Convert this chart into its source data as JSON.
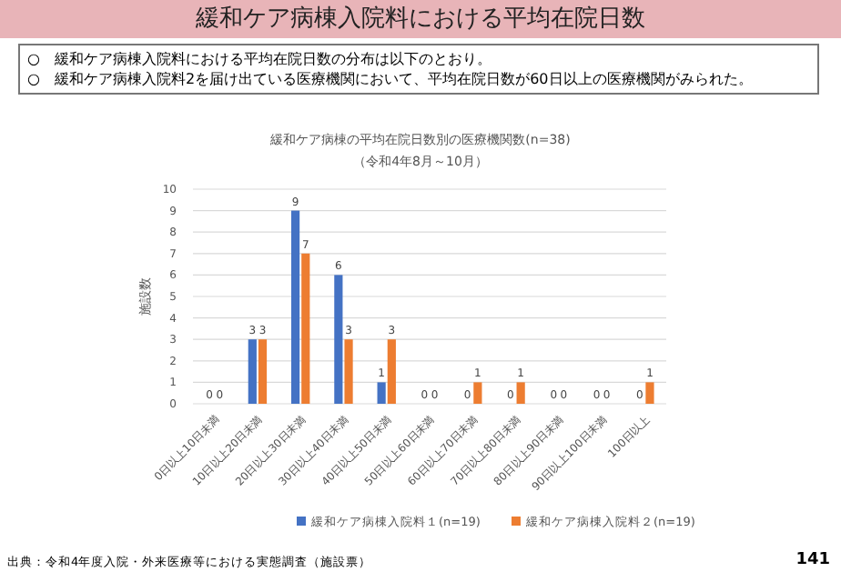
{
  "chart_data": {
    "type": "bar",
    "title": "緩和ケア病棟入院料における平均在院日数",
    "subtitle": "緩和ケア病棟の平均在院日数別の医療機関数(n=38)",
    "annotations": [
      "（令和4年8月～10月）",
      "○　緩和ケア病棟入院料における平均在院日数の分布は以下のとおり。",
      "○　緩和ケア病棟入院料2を届け出ている医療機関において、平均在院日数が60日以上の医療機関がみられた。",
      "出典：令和4年度入院・外来医療等における実態調査（施設票）",
      "141"
    ],
    "ylabel": "施設数",
    "categories": [
      "0日以上10日未満",
      "10日以上20日未満",
      "20日以上30日未満",
      "30日以上40日未満",
      "40日以上50日未満",
      "50日以上60日未満",
      "60日以上70日未満",
      "70日以上80日未満",
      "80日以上90日未満",
      "90日以上100日未満",
      "100日以上"
    ],
    "series": [
      {
        "name": "緩和ケア病棟入院料１(n=19)",
        "color": "#4472c4",
        "values": [
          0,
          3,
          9,
          6,
          1,
          0,
          0,
          0,
          0,
          0,
          0
        ]
      },
      {
        "name": "緩和ケア病棟入院料２(n=19)",
        "color": "#ed7d31",
        "values": [
          0,
          3,
          7,
          3,
          3,
          0,
          1,
          1,
          0,
          0,
          1
        ]
      }
    ],
    "ylim": [
      0,
      10
    ],
    "yticks": [
      0,
      1,
      2,
      3,
      4,
      5,
      6,
      7,
      8,
      9,
      10
    ],
    "grid": "y",
    "legend": "bottom",
    "data_labels": true
  }
}
